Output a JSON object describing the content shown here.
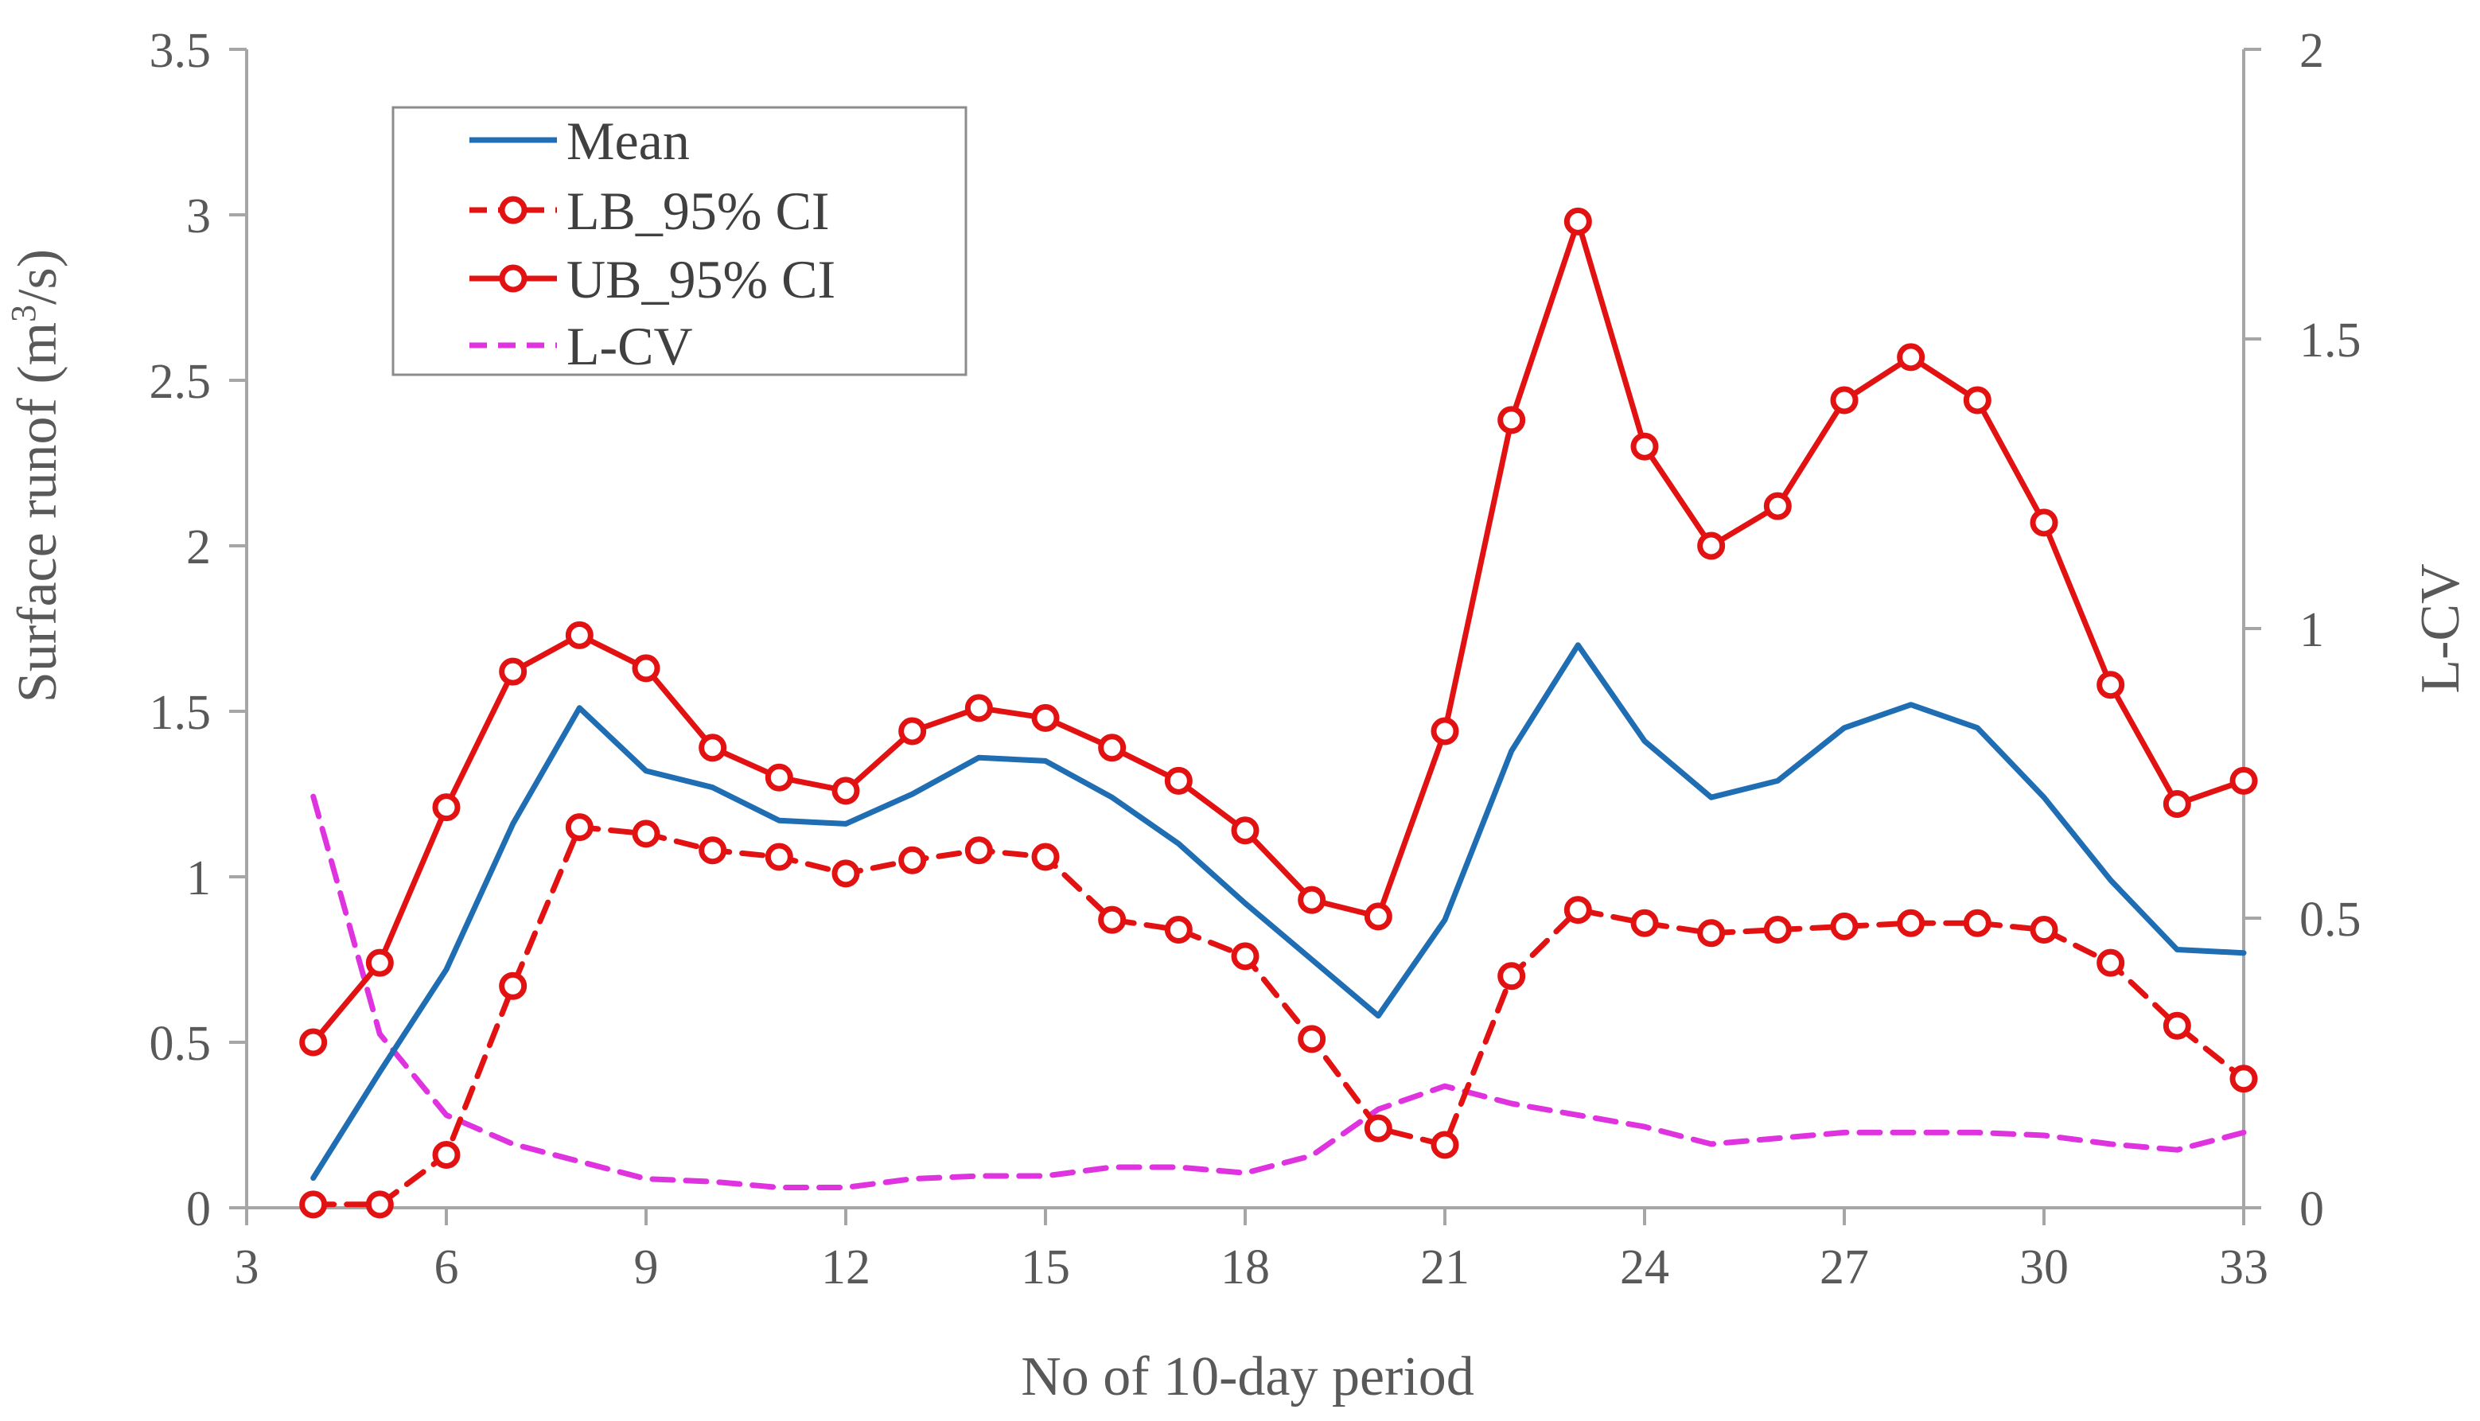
{
  "chart_data": {
    "type": "line",
    "title": "",
    "xlabel": "No of 10-day period",
    "ylabel_left_prefix": "Surface runof (m",
    "ylabel_left_sup": "3",
    "ylabel_left_suffix": "/s)",
    "ylabel_right": "L-CV",
    "xlim": [
      3,
      33
    ],
    "ylim_left": [
      0,
      3.5
    ],
    "ylim_right": [
      0,
      2
    ],
    "xticks": [
      "3",
      "6",
      "9",
      "12",
      "15",
      "18",
      "21",
      "24",
      "27",
      "30",
      "33"
    ],
    "yticks_left": [
      "0",
      "0.5",
      "1",
      "1.5",
      "2",
      "2.5",
      "3",
      "3.5"
    ],
    "yticks_right": [
      "0",
      "0.5",
      "1",
      "1.5",
      "2"
    ],
    "x": [
      4,
      5,
      6,
      7,
      8,
      9,
      10,
      11,
      12,
      13,
      14,
      15,
      16,
      17,
      18,
      19,
      20,
      21,
      22,
      23,
      24,
      25,
      26,
      27,
      28,
      29,
      30,
      31,
      32,
      33
    ],
    "series": [
      {
        "name": "Mean",
        "axis": "left",
        "color": "#1f6db2",
        "dash": "solid",
        "marker": "none",
        "values": [
          0.09,
          0.41,
          0.72,
          1.16,
          1.51,
          1.32,
          1.27,
          1.17,
          1.16,
          1.25,
          1.36,
          1.35,
          1.24,
          1.1,
          0.92,
          0.75,
          0.58,
          0.87,
          1.38,
          1.7,
          1.41,
          1.24,
          1.29,
          1.45,
          1.52,
          1.45,
          1.24,
          0.99,
          0.78,
          0.77
        ]
      },
      {
        "name": "LB_95% CI",
        "axis": "left",
        "color": "#e21212",
        "dash": "dashed",
        "marker": "circle",
        "values": [
          0.01,
          0.01,
          0.16,
          0.67,
          1.15,
          1.13,
          1.08,
          1.06,
          1.01,
          1.05,
          1.08,
          1.06,
          0.87,
          0.84,
          0.76,
          0.51,
          0.24,
          0.19,
          0.7,
          0.9,
          0.86,
          0.83,
          0.84,
          0.85,
          0.86,
          0.86,
          0.84,
          0.74,
          0.55,
          0.39
        ]
      },
      {
        "name": "UB_95% CI",
        "axis": "left",
        "color": "#e21212",
        "dash": "solid",
        "marker": "circle",
        "values": [
          0.5,
          0.74,
          1.21,
          1.62,
          1.73,
          1.63,
          1.39,
          1.3,
          1.26,
          1.44,
          1.51,
          1.48,
          1.39,
          1.29,
          1.14,
          0.93,
          0.88,
          1.44,
          2.38,
          2.98,
          2.3,
          2.0,
          2.12,
          2.44,
          2.57,
          2.44,
          2.07,
          1.58,
          1.22,
          1.29
        ]
      },
      {
        "name": "L-CV",
        "axis": "right",
        "color": "#e033e0",
        "dash": "dashed",
        "marker": "none",
        "values": [
          0.71,
          0.3,
          0.16,
          0.11,
          0.08,
          0.05,
          0.045,
          0.035,
          0.035,
          0.05,
          0.055,
          0.055,
          0.07,
          0.07,
          0.06,
          0.09,
          0.17,
          0.21,
          0.18,
          0.16,
          0.14,
          0.11,
          0.12,
          0.13,
          0.13,
          0.13,
          0.125,
          0.11,
          0.1,
          0.13
        ]
      }
    ],
    "legend_position": "top-left"
  }
}
